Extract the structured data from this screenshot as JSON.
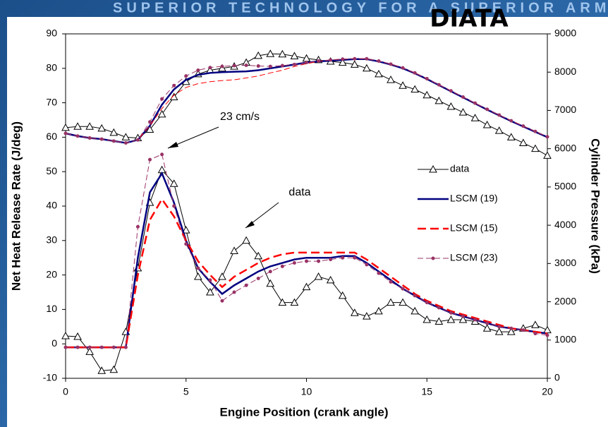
{
  "banner": "SUPERIOR TECHNOLOGY FOR A SUPERIOR ARMY",
  "logo": "DIATA",
  "chart_data": {
    "type": "line",
    "xlabel": "Engine Position (crank angle)",
    "ylabel": "Net Heat Release Rate (J/deg)",
    "y2label": "Cylinder Pressure (kPa)",
    "x": [
      0,
      0.5,
      1,
      1.5,
      2,
      2.5,
      3,
      3.5,
      4,
      4.5,
      5,
      5.5,
      6,
      6.5,
      7,
      7.5,
      8,
      8.5,
      9,
      9.5,
      10,
      10.5,
      11,
      11.5,
      12,
      12.5,
      13,
      13.5,
      14,
      14.5,
      15,
      15.5,
      16,
      16.5,
      17,
      17.5,
      18,
      18.5,
      19,
      19.5,
      20
    ],
    "xlim": [
      0,
      20
    ],
    "xticks": [
      0,
      5,
      10,
      15,
      20
    ],
    "ylim": [
      -10,
      90
    ],
    "yticks": [
      -10,
      0,
      10,
      20,
      30,
      40,
      50,
      60,
      70,
      80,
      90
    ],
    "y2lim": [
      0,
      9000
    ],
    "y2ticks": [
      0,
      1000,
      2000,
      3000,
      4000,
      5000,
      6000,
      7000,
      8000,
      9000
    ],
    "grid": false,
    "legend": "right",
    "annotations": [
      {
        "text": "23 cm/s"
      },
      {
        "text": "data"
      }
    ],
    "series": [
      {
        "name": "data",
        "color": "#000000",
        "width": 1,
        "marker": "triangle",
        "values": [
          2.3,
          2.1,
          -2.3,
          -7.8,
          -7.5,
          3.5,
          22,
          41,
          50.5,
          46.5,
          33,
          19.5,
          15,
          19.5,
          27,
          30,
          25.5,
          17.5,
          12,
          12,
          16.5,
          19.5,
          18.5,
          14,
          9,
          8,
          9.5,
          12,
          12,
          9.5,
          7,
          6.5,
          7,
          7,
          6.5,
          4.5,
          3.5,
          3.5,
          4.5,
          5.5,
          4
        ]
      },
      {
        "name": "LSCM (19)",
        "color": "#000080",
        "width": 2.5,
        "values": [
          -1,
          -1,
          -1,
          -1,
          -1,
          -1,
          25,
          44,
          49.5,
          41,
          30,
          22,
          18,
          14.5,
          17,
          19,
          21,
          22.5,
          23.5,
          24.5,
          25,
          25,
          25,
          25.5,
          25.5,
          23.5,
          21,
          18.5,
          16,
          14,
          12,
          10.5,
          9,
          8,
          7,
          6,
          5,
          4.5,
          4,
          3.5,
          3
        ]
      },
      {
        "name": "LSCM (15)",
        "color": "#ff0000",
        "width": 2.5,
        "dash": true,
        "values": [
          -1,
          -1,
          -1,
          -1,
          -1,
          -1,
          20,
          36,
          42,
          37,
          30,
          24,
          20,
          16.5,
          19.5,
          21.5,
          23.5,
          25,
          26,
          26.5,
          26.5,
          26.5,
          26.5,
          26.5,
          26.5,
          24.5,
          22,
          19.5,
          17,
          14.5,
          12.5,
          11,
          9.5,
          8.5,
          7.5,
          6.5,
          5.5,
          4.5,
          4,
          3.5,
          3
        ]
      },
      {
        "name": "LSCM (23)",
        "color": "#993366",
        "width": 1,
        "dash": true,
        "marker": "dot",
        "values": [
          -1,
          -1,
          -1,
          -1,
          -1,
          -1,
          34,
          53.5,
          55,
          40,
          29,
          22,
          18.5,
          12.5,
          15,
          17,
          19,
          21,
          22.5,
          23.5,
          24,
          24,
          24.5,
          25,
          25,
          23,
          20.5,
          18,
          16,
          14,
          12,
          10.5,
          9,
          8,
          7,
          6,
          5,
          4.5,
          4,
          3,
          2.5
        ]
      },
      {
        "name": "data",
        "color": "#000000",
        "width": 1,
        "marker": "triangle",
        "axis": "y2",
        "values": [
          6550,
          6580,
          6580,
          6530,
          6420,
          6300,
          6280,
          6500,
          6900,
          7350,
          7750,
          7950,
          8050,
          8100,
          8150,
          8250,
          8430,
          8480,
          8470,
          8420,
          8360,
          8320,
          8280,
          8250,
          8200,
          8100,
          7950,
          7800,
          7650,
          7550,
          7400,
          7250,
          7100,
          6950,
          6800,
          6620,
          6470,
          6300,
          6150,
          6000,
          5820
        ]
      },
      {
        "name": "LSCM (19)",
        "color": "#000080",
        "width": 2.5,
        "axis": "y2",
        "values": [
          6400,
          6330,
          6280,
          6250,
          6200,
          6150,
          6230,
          6600,
          7150,
          7550,
          7800,
          7930,
          7980,
          8000,
          8010,
          8020,
          8050,
          8100,
          8150,
          8200,
          8250,
          8280,
          8300,
          8320,
          8340,
          8340,
          8280,
          8200,
          8100,
          7970,
          7820,
          7660,
          7500,
          7340,
          7180,
          7020,
          6870,
          6720,
          6580,
          6440,
          6300
        ]
      },
      {
        "name": "LSCM (15)",
        "color": "#ff0000",
        "width": 1,
        "dash": true,
        "axis": "y2",
        "values": [
          6400,
          6330,
          6280,
          6250,
          6200,
          6150,
          6230,
          6600,
          7050,
          7400,
          7600,
          7700,
          7750,
          7780,
          7800,
          7850,
          7900,
          7980,
          8050,
          8150,
          8220,
          8280,
          8320,
          8340,
          8350,
          8350,
          8290,
          8210,
          8110,
          7980,
          7830,
          7670,
          7510,
          7350,
          7190,
          7030,
          6880,
          6730,
          6590,
          6450,
          6310
        ]
      },
      {
        "name": "LSCM (23)",
        "color": "#993366",
        "width": 1,
        "dash": true,
        "marker": "dot",
        "axis": "y2",
        "values": [
          6400,
          6330,
          6280,
          6250,
          6200,
          6150,
          6230,
          6700,
          7300,
          7650,
          7900,
          8050,
          8120,
          8150,
          8170,
          8180,
          8160,
          8150,
          8170,
          8200,
          8250,
          8290,
          8320,
          8340,
          8350,
          8350,
          8290,
          8210,
          8110,
          7980,
          7830,
          7670,
          7510,
          7350,
          7190,
          7030,
          6880,
          6730,
          6590,
          6450,
          6310
        ]
      }
    ]
  }
}
